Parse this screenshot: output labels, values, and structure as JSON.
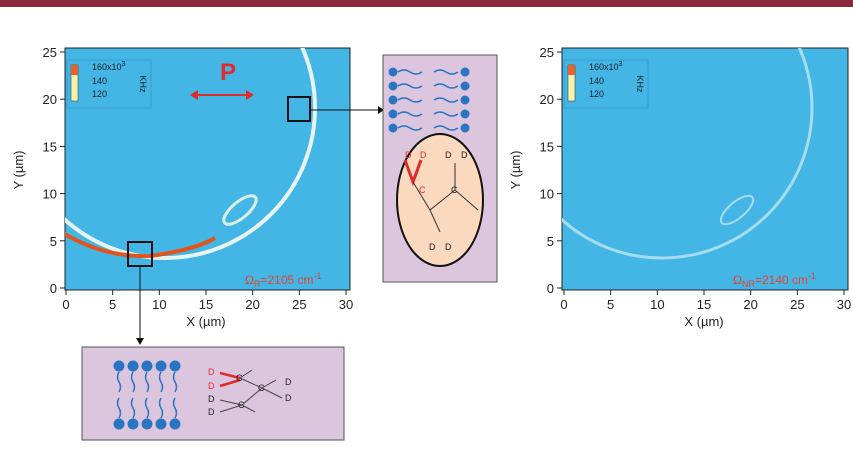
{
  "panels": [
    {
      "xlabel": "X (µm)",
      "ylabel": "Y (µm)",
      "xticks": [
        0,
        5,
        10,
        15,
        20,
        25,
        30
      ],
      "yticks": [
        0,
        5,
        10,
        15,
        20,
        25
      ],
      "colorbar": {
        "top": "160x10",
        "top_exp": "3",
        "mid": "140",
        "low": "120",
        "unit": "KHz"
      },
      "annotation": {
        "symbol": "Ω",
        "sub": "R",
        "text": "=2105 cm",
        "sup": "-1"
      },
      "polarization": "P"
    },
    {
      "xlabel": "X (µm)",
      "ylabel": "Y (µm)",
      "xticks": [
        0,
        5,
        10,
        15,
        20,
        25,
        30
      ],
      "yticks": [
        0,
        5,
        10,
        15,
        20,
        25
      ],
      "colorbar": {
        "top": "160x10",
        "top_exp": "3",
        "mid": "140",
        "low": "120",
        "unit": "KHz"
      },
      "annotation": {
        "symbol": "Ω",
        "sub": "NR",
        "text": "=2140 cm",
        "sup": "-1"
      }
    }
  ],
  "insets": {
    "right": {
      "atoms": [
        "D",
        "D",
        "D",
        "D",
        "C",
        "C",
        "D",
        "D"
      ]
    },
    "bottom": {
      "atoms": [
        "D",
        "D",
        "C",
        "C",
        "C",
        "D",
        "D",
        "D",
        "D"
      ]
    }
  }
}
